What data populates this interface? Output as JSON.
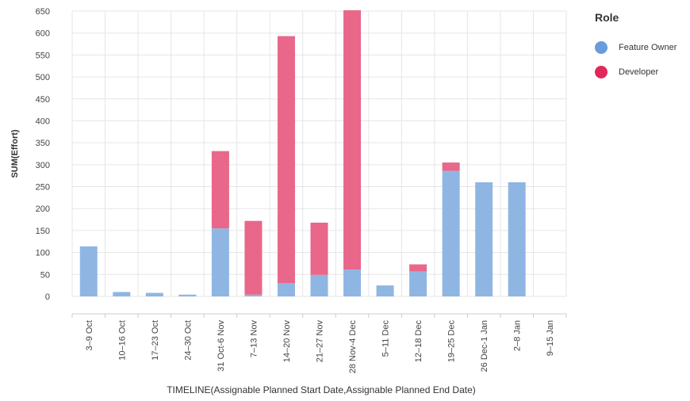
{
  "chart_data": {
    "type": "bar",
    "stacked": true,
    "xlabel": "TIMELINE(Assignable Planned Start Date,Assignable Planned End Date)",
    "ylabel": "SUM(Effort)",
    "ylim": [
      0,
      650
    ],
    "yticks": [
      0,
      50,
      100,
      150,
      200,
      250,
      300,
      350,
      400,
      450,
      500,
      550,
      600,
      650
    ],
    "grid": true,
    "legend_position": "right",
    "categories": [
      "3–9 Oct",
      "10–16 Oct",
      "17–23 Oct",
      "24–30 Oct",
      "31 Oct-6 Nov",
      "7–13 Nov",
      "14–20 Nov",
      "21–27 Nov",
      "28 Nov-4 Dec",
      "5–11 Dec",
      "12–18 Dec",
      "19–25 Dec",
      "26 Dec-1 Jan",
      "2–8 Jan",
      "9–15 Jan"
    ],
    "series": [
      {
        "name": "Feature Owner",
        "color": "#8fb6e3",
        "values": [
          114,
          10,
          8,
          4,
          155,
          4,
          30,
          49,
          61,
          25,
          57,
          286,
          260,
          260,
          0
        ]
      },
      {
        "name": "Developer",
        "color": "#e8678a",
        "values": [
          0,
          0,
          0,
          0,
          176,
          168,
          563,
          119,
          591,
          0,
          16,
          19,
          0,
          0,
          0
        ]
      }
    ]
  },
  "legend": {
    "title": "Role",
    "items": [
      {
        "label": "Feature Owner",
        "color": "#6a9bdc"
      },
      {
        "label": "Developer",
        "color": "#e2275a"
      }
    ]
  }
}
